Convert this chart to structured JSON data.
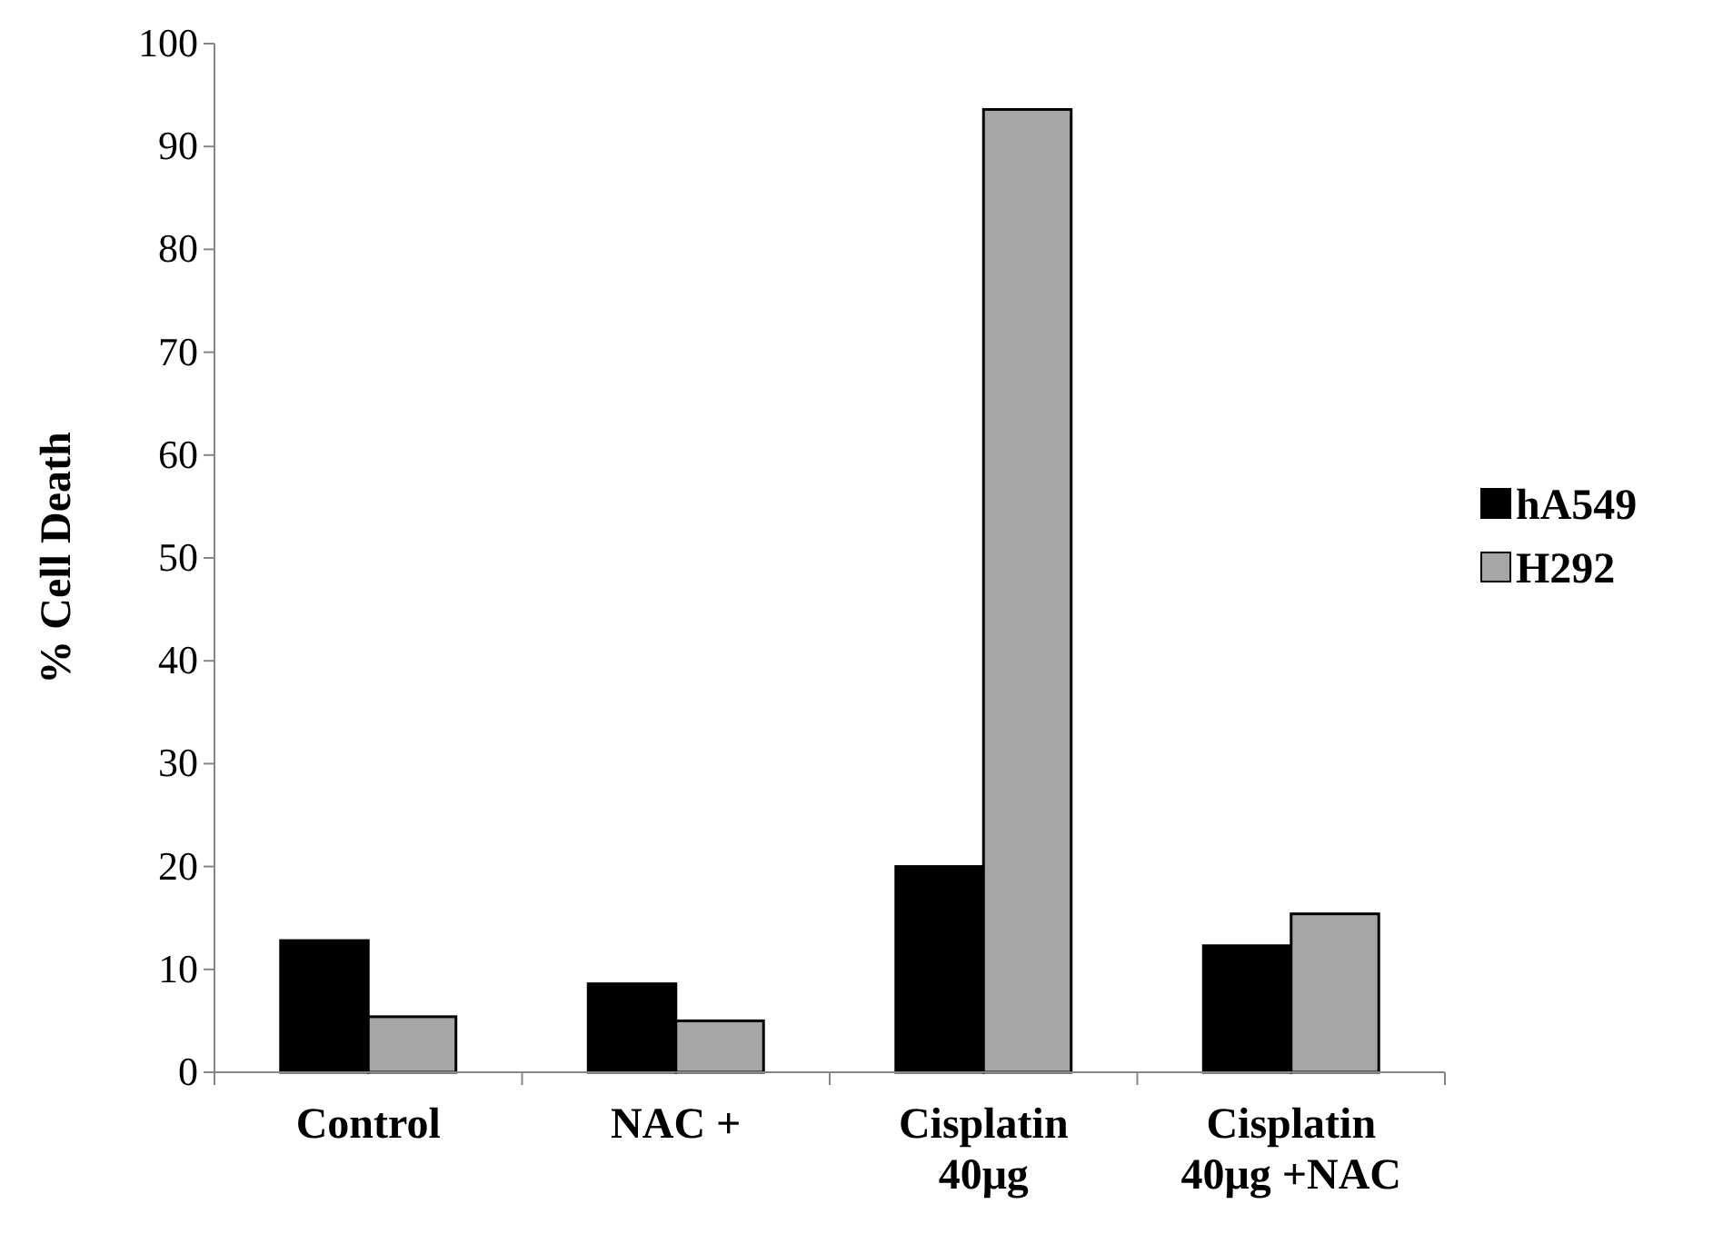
{
  "chart_data": {
    "type": "bar",
    "ylabel": "% Cell Death",
    "categories": [
      "Control",
      "NAC +",
      "Cisplatin 40μg",
      "Cisplatin 40μg +NAC"
    ],
    "series": [
      {
        "name": "hA549",
        "color": "#000000",
        "values": [
          12.8,
          8.6,
          20.0,
          12.3
        ]
      },
      {
        "name": "H292",
        "color": "#a6a6a6",
        "values": [
          5.4,
          5.0,
          93.6,
          15.4
        ]
      }
    ],
    "ylim": [
      0,
      100
    ],
    "yticks": [
      0,
      10,
      20,
      30,
      40,
      50,
      60,
      70,
      80,
      90,
      100
    ],
    "grid": false,
    "legend": "right"
  }
}
